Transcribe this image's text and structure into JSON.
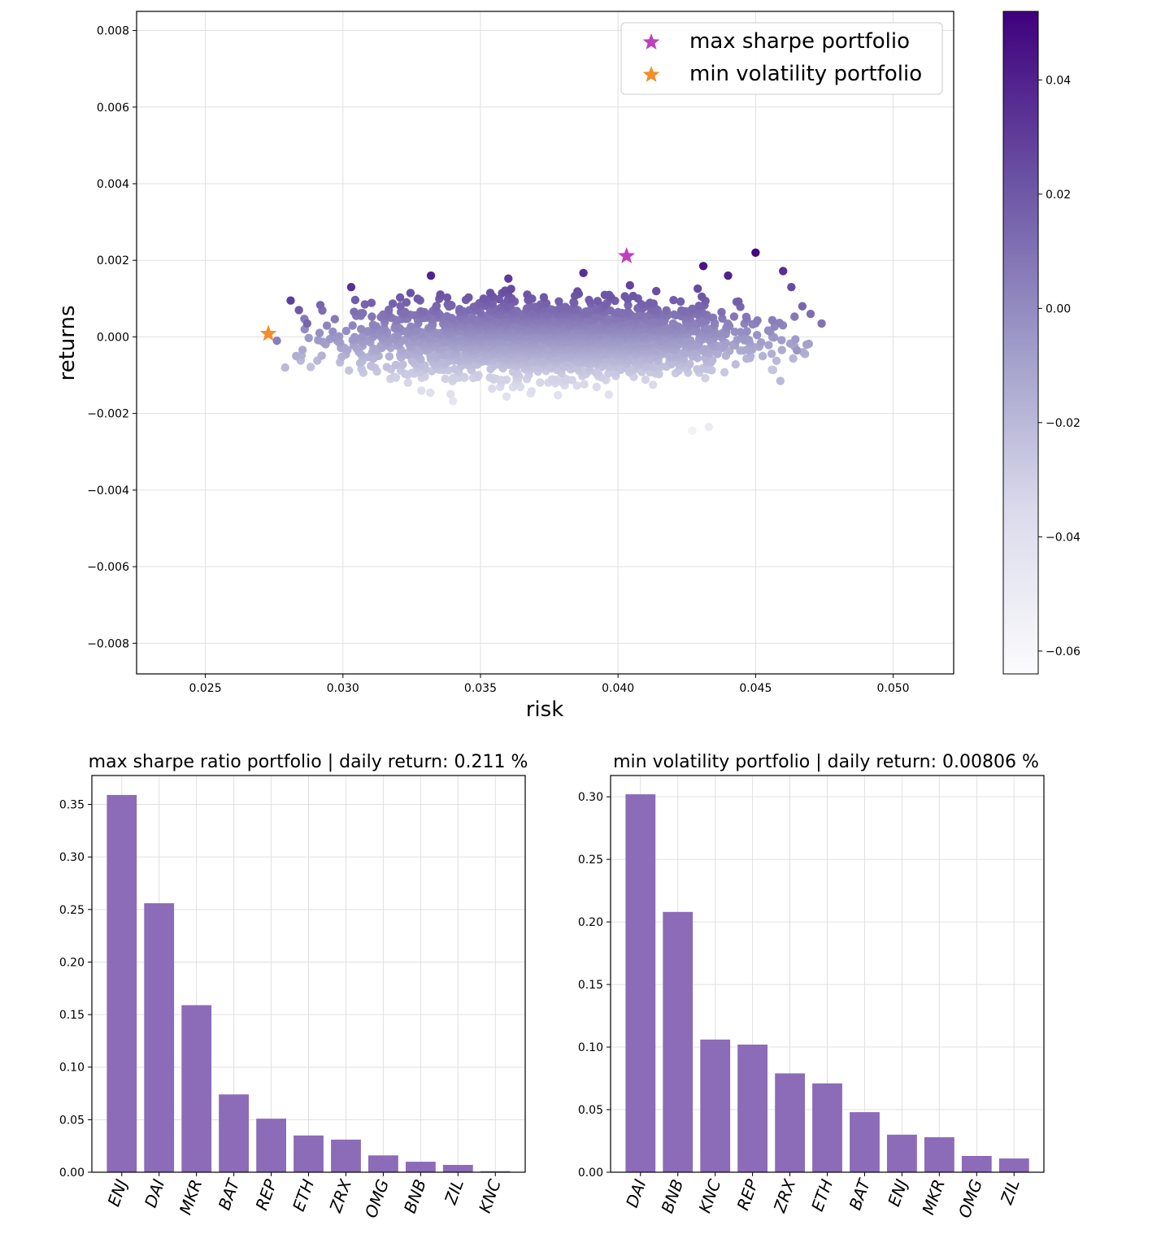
{
  "chart_data": [
    {
      "type": "scatter",
      "title": "",
      "xlabel": "risk",
      "ylabel": "returns",
      "xlim": [
        0.0225,
        0.0522
      ],
      "ylim": [
        -0.0088,
        0.0085
      ],
      "x_ticks": [
        "0.025",
        "0.030",
        "0.035",
        "0.040",
        "0.045",
        "0.050"
      ],
      "y_ticks": [
        "−0.008",
        "−0.006",
        "−0.004",
        "−0.002",
        "0.000",
        "0.002",
        "0.004",
        "0.006",
        "0.008"
      ],
      "grid": true,
      "colormap": "Purples",
      "colorbar": {
        "range": [
          -0.064,
          0.052
        ],
        "ticks": [
          "−0.06",
          "−0.04",
          "−0.02",
          "0.00",
          "0.02",
          "0.04"
        ],
        "color_low": "#fcfbfd",
        "color_high": "#3f007d"
      },
      "cloud": {
        "x_range": [
          0.0273,
          0.0474
        ],
        "y_range": [
          -0.0025,
          0.0022
        ],
        "x_center": 0.0375,
        "y_center": -5e-05
      },
      "outliers": [
        {
          "x": 0.045,
          "y": 0.0022,
          "c": 0.05
        },
        {
          "x": 0.046,
          "y": 0.00172,
          "c": 0.035
        },
        {
          "x": 0.0463,
          "y": 0.0013,
          "c": 0.025
        },
        {
          "x": 0.0474,
          "y": 0.00035,
          "c": 0.01
        },
        {
          "x": 0.047,
          "y": 0.0006,
          "c": 0.012
        },
        {
          "x": 0.0467,
          "y": 0.0008,
          "c": 0.015
        },
        {
          "x": 0.0465,
          "y": -0.00035,
          "c": -0.005
        },
        {
          "x": 0.0459,
          "y": -0.00115,
          "c": -0.02
        },
        {
          "x": 0.0281,
          "y": 0.00095,
          "c": 0.03
        },
        {
          "x": 0.0284,
          "y": 0.0007,
          "c": 0.02
        },
        {
          "x": 0.0287,
          "y": 0.00035,
          "c": 0.015
        },
        {
          "x": 0.0279,
          "y": -0.0008,
          "c": -0.02
        },
        {
          "x": 0.0276,
          "y": -0.0001,
          "c": 0.005
        },
        {
          "x": 0.0283,
          "y": -0.0005,
          "c": -0.015
        },
        {
          "x": 0.0303,
          "y": 0.0013,
          "c": 0.035
        },
        {
          "x": 0.0332,
          "y": 0.0016,
          "c": 0.04
        },
        {
          "x": 0.0431,
          "y": 0.00185,
          "c": 0.045
        },
        {
          "x": 0.044,
          "y": 0.0016,
          "c": 0.04
        },
        {
          "x": 0.0433,
          "y": -0.00235,
          "c": -0.05
        },
        {
          "x": 0.0427,
          "y": -0.00245,
          "c": -0.055
        }
      ],
      "markers": [
        {
          "label": "max sharpe portfolio",
          "x": 0.04031,
          "y": 0.00211,
          "color": "#bf3fbf"
        },
        {
          "label": "min volatility portfolio",
          "x": 0.02729,
          "y": 8.06e-05,
          "color": "#f28e2b"
        }
      ],
      "legend_position": "upper right"
    },
    {
      "type": "bar",
      "title": "max sharpe ratio portfolio | daily return: 0.211 %",
      "categories": [
        "ENJ",
        "DAI",
        "MKR",
        "BAT",
        "REP",
        "ETH",
        "ZRX",
        "OMG",
        "BNB",
        "ZIL",
        "KNC"
      ],
      "values": [
        0.359,
        0.256,
        0.159,
        0.074,
        0.051,
        0.035,
        0.031,
        0.016,
        0.01,
        0.007,
        0.001
      ],
      "ylim": [
        0,
        0.3775
      ],
      "y_ticks": [
        "0.00",
        "0.05",
        "0.10",
        "0.15",
        "0.20",
        "0.25",
        "0.30",
        "0.35"
      ],
      "bar_color": "#8c6bb8",
      "grid": true
    },
    {
      "type": "bar",
      "title": "min volatility portfolio | daily return: 0.00806 %",
      "categories": [
        "DAI",
        "BNB",
        "KNC",
        "REP",
        "ZRX",
        "ETH",
        "BAT",
        "ENJ",
        "MKR",
        "OMG",
        "ZIL"
      ],
      "values": [
        0.302,
        0.208,
        0.106,
        0.102,
        0.079,
        0.071,
        0.048,
        0.03,
        0.028,
        0.013,
        0.011
      ],
      "ylim": [
        0,
        0.317
      ],
      "y_ticks": [
        "0.00",
        "0.05",
        "0.10",
        "0.15",
        "0.20",
        "0.25",
        "0.30"
      ],
      "bar_color": "#8c6bb8",
      "grid": true
    }
  ]
}
